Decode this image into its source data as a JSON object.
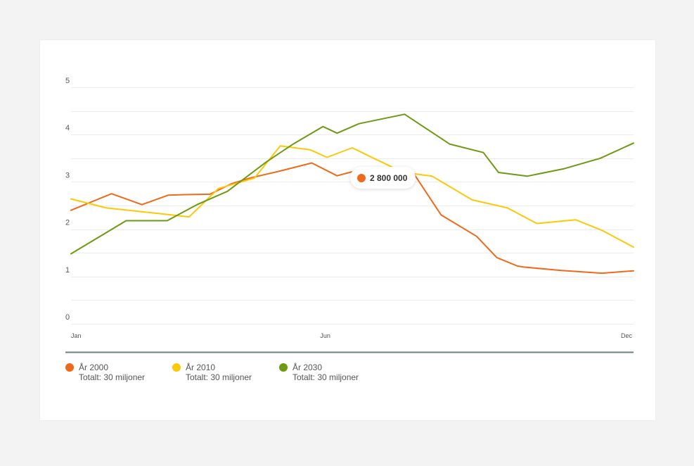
{
  "chart_data": {
    "type": "line",
    "ylim": [
      0,
      5
    ],
    "y_ticks": [
      "0",
      "1",
      "2",
      "3",
      "4",
      "5"
    ],
    "x_ticks": [
      "Jan",
      "Jun",
      "Dec"
    ],
    "grid": true,
    "legend_position": "bottom-left",
    "series": [
      {
        "name": "År 2000",
        "subtitle": "Totalt: 30 miljoner",
        "color": "#ee6a1a",
        "x": [
          1,
          1.72,
          2.26,
          2.73,
          3.04,
          3.47,
          3.85,
          4.18,
          4.72,
          5.28,
          5.73,
          6.05,
          6.43,
          7.08,
          7.58,
          8.21,
          8.57,
          8.94,
          9.05,
          9.7,
          10.44,
          11
        ],
        "values": [
          2.4,
          2.75,
          2.52,
          2.72,
          2.73,
          2.74,
          2.96,
          3.08,
          3.23,
          3.4,
          3.13,
          3.23,
          3.22,
          3.2,
          2.3,
          1.85,
          1.4,
          1.22,
          1.2,
          1.13,
          1.07,
          1.12
        ]
      },
      {
        "name": "År 2010",
        "subtitle": "Totalt: 30 miljoner",
        "color": "#fcc80a",
        "x": [
          1,
          1.63,
          2.42,
          3.1,
          3.62,
          4.26,
          4.72,
          5.25,
          5.55,
          6.0,
          6.38,
          6.91,
          7.42,
          8.13,
          8.76,
          9.28,
          9.97,
          10.45,
          11
        ],
        "values": [
          2.64,
          2.45,
          2.35,
          2.26,
          2.86,
          3.08,
          3.76,
          3.68,
          3.52,
          3.72,
          3.5,
          3.2,
          3.12,
          2.62,
          2.45,
          2.12,
          2.2,
          1.97,
          1.62
        ]
      },
      {
        "name": "År 2030",
        "subtitle": "Totalt: 30 miljoner",
        "color": "#6d9a13",
        "x": [
          1,
          1.98,
          2.71,
          3.24,
          3.78,
          4.47,
          4.95,
          5.48,
          5.73,
          6.12,
          6.93,
          7.73,
          8.33,
          8.6,
          9.11,
          9.77,
          10.41,
          11
        ],
        "values": [
          1.48,
          2.18,
          2.18,
          2.52,
          2.8,
          3.42,
          3.8,
          4.17,
          4.03,
          4.23,
          4.43,
          3.8,
          3.62,
          3.2,
          3.12,
          3.28,
          3.5,
          3.82
        ]
      }
    ]
  },
  "tooltip": {
    "value": "2 800 000",
    "color": "#ee6a1a"
  }
}
